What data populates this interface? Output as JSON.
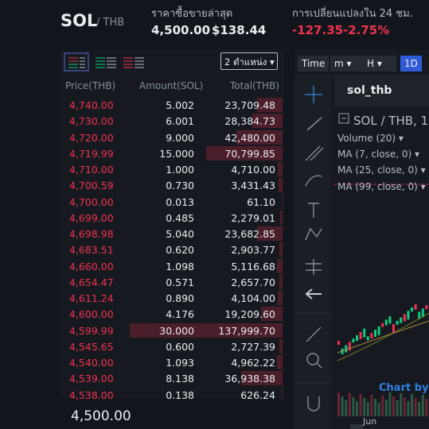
{
  "header": {
    "base": "SOL",
    "quote": "/ THB",
    "last_price_label": "ราคาซื้อขายล่าสุด",
    "last_price": "4,500.00",
    "last_price_usd": "$138.44",
    "change_label": "การเปลี่ยนแปลงใน 24 ชม.",
    "change": "-127.35",
    "change_pct": "-2.75%"
  },
  "orderbook": {
    "precision": "2 ตำแหน่ง",
    "columns": [
      "Price(THB)",
      "Amount(SOL)",
      "Total(THB)"
    ],
    "rows": [
      {
        "price": "4,740.00",
        "amount": "5.002",
        "total": "23,709.48"
      },
      {
        "price": "4,730.00",
        "amount": "6.001",
        "total": "28,384.73"
      },
      {
        "price": "4,720.00",
        "amount": "9.000",
        "total": "42,480.00"
      },
      {
        "price": "4,719.99",
        "amount": "15.000",
        "total": "70,799.85"
      },
      {
        "price": "4,710.00",
        "amount": "1.000",
        "total": "4,710.00"
      },
      {
        "price": "4,700.59",
        "amount": "0.730",
        "total": "3,431.43"
      },
      {
        "price": "4,700.00",
        "amount": "0.013",
        "total": "61.10"
      },
      {
        "price": "4,699.00",
        "amount": "0.485",
        "total": "2,279.01"
      },
      {
        "price": "4,698.98",
        "amount": "5.040",
        "total": "23,682.85"
      },
      {
        "price": "4,683.51",
        "amount": "0.620",
        "total": "2,903.77"
      },
      {
        "price": "4,660.00",
        "amount": "1.098",
        "total": "5,116.68"
      },
      {
        "price": "4,654.47",
        "amount": "0.571",
        "total": "2,657.70"
      },
      {
        "price": "4,611.24",
        "amount": "0.890",
        "total": "4,104.00"
      },
      {
        "price": "4,600.00",
        "amount": "4.176",
        "total": "19,209.60"
      },
      {
        "price": "4,599.99",
        "amount": "30.000",
        "total": "137,999.70"
      },
      {
        "price": "4,545.65",
        "amount": "0.600",
        "total": "2,727.39"
      },
      {
        "price": "4,540.00",
        "amount": "1.093",
        "total": "4,962.22"
      },
      {
        "price": "4,539.00",
        "amount": "8.138",
        "total": "36,938.38"
      },
      {
        "price": "4,538.00",
        "amount": "0.138",
        "total": "626.24"
      }
    ],
    "footer_price": "4,500.00"
  },
  "chart": {
    "toolbar": [
      "Time",
      "m",
      "H",
      "1D"
    ],
    "tab": "sol_thb",
    "title": "SOL / THB, 1",
    "indicators": [
      "Volume (20)",
      "MA (7, close, 0)",
      "MA (25, close, 0)",
      "MA (99, close, 0)"
    ],
    "watermark": "Chart by T",
    "x_label": "Jun"
  }
}
